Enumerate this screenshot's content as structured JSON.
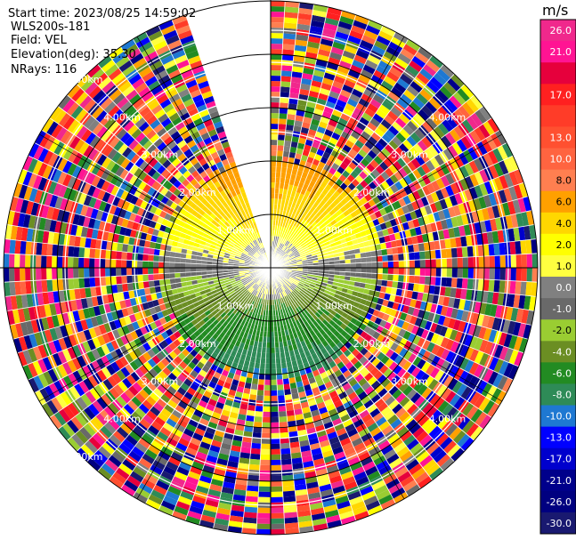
{
  "chart_data": {
    "type": "ppi",
    "info": {
      "start_time": "Start time: 2023/08/25 14:59:02",
      "instrument": "WLS200s-181",
      "field": "Field: VEL",
      "elevation": "Elevation(deg): 35.30",
      "nrays": "NRays: 116"
    },
    "colorbar": {
      "unit": "m/s",
      "levels": [
        {
          "label": "26.0",
          "color": "#f0288c"
        },
        {
          "label": "21.0",
          "color": "#ff1493"
        },
        {
          "label": "",
          "color": "#e6003c"
        },
        {
          "label": "17.0",
          "color": "#ff2020"
        },
        {
          "label": "",
          "color": "#ff3c28"
        },
        {
          "label": "13.0",
          "color": "#ff5030"
        },
        {
          "label": "10.0",
          "color": "#ff6440"
        },
        {
          "label": "8.0",
          "color": "#ff7f50"
        },
        {
          "label": "6.0",
          "color": "#ffa000"
        },
        {
          "label": "4.0",
          "color": "#ffd700"
        },
        {
          "label": "2.0",
          "color": "#ffff00"
        },
        {
          "label": "1.0",
          "color": "#ffff40"
        },
        {
          "label": "0.0",
          "color": "#808080"
        },
        {
          "label": "-1.0",
          "color": "#696969"
        },
        {
          "label": "-2.0",
          "color": "#9acd32"
        },
        {
          "label": "-4.0",
          "color": "#6b8e23"
        },
        {
          "label": "-6.0",
          "color": "#228b22"
        },
        {
          "label": "-8.0",
          "color": "#2e8b57"
        },
        {
          "label": "-10.0",
          "color": "#1e78d2"
        },
        {
          "label": "-13.0",
          "color": "#0000ff"
        },
        {
          "label": "-17.0",
          "color": "#0000cd"
        },
        {
          "label": "-21.0",
          "color": "#00008b"
        },
        {
          "label": "-26.0",
          "color": "#000080"
        },
        {
          "label": "-30.0",
          "color": "#191970"
        }
      ]
    },
    "range_rings": {
      "labels": [
        "1.00km",
        "2.00km",
        "3.00km",
        "4.00km",
        "5.00km"
      ]
    },
    "gap_sector_deg": [
      -20,
      0
    ],
    "valid_range_km": 2.0,
    "max_range_km": 5.0
  }
}
